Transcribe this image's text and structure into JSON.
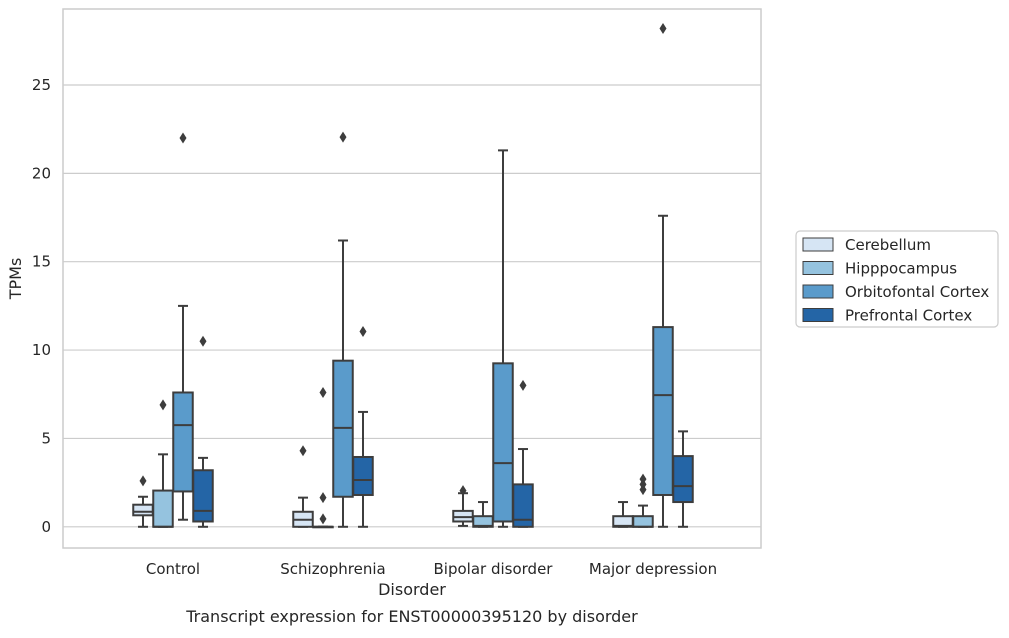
{
  "chart_data": {
    "type": "box",
    "caption": "Transcript expression for ENST00000395120 by disorder",
    "xlabel": "Disorder",
    "ylabel": "TPMs",
    "ylim": [
      -1.2,
      29.3
    ],
    "yticks": [
      0,
      5,
      10,
      15,
      20,
      25
    ],
    "grid": "horizontal",
    "legend_position": "right",
    "categories": [
      "Control",
      "Schizophrenia",
      "Bipolar disorder",
      "Major depression"
    ],
    "series": [
      {
        "name": "Cerebellum",
        "color": "#d6e5f4",
        "boxes": [
          {
            "whislo": 0.0,
            "q1": 0.65,
            "median": 0.85,
            "q3": 1.25,
            "whishi": 1.7,
            "fliers": [
              2.6
            ]
          },
          {
            "whislo": 0.0,
            "q1": 0.0,
            "median": 0.4,
            "q3": 0.85,
            "whishi": 1.65,
            "fliers": [
              4.3
            ]
          },
          {
            "whislo": 0.05,
            "q1": 0.3,
            "median": 0.55,
            "q3": 0.9,
            "whishi": 1.9,
            "fliers": [
              2.05
            ]
          },
          {
            "whislo": 0.0,
            "q1": 0.0,
            "median": 0.05,
            "q3": 0.6,
            "whishi": 1.4,
            "fliers": []
          }
        ]
      },
      {
        "name": "Hipppocampus",
        "color": "#95c3df",
        "boxes": [
          {
            "whislo": 0.0,
            "q1": 0.0,
            "median": 0.0,
            "q3": 2.05,
            "whishi": 4.1,
            "fliers": [
              6.9
            ]
          },
          {
            "whislo": 0.0,
            "q1": 0.0,
            "median": 0.0,
            "q3": 0.0,
            "whishi": 0.0,
            "fliers": [
              0.45,
              1.65,
              7.6
            ]
          },
          {
            "whislo": 0.0,
            "q1": 0.0,
            "median": 0.05,
            "q3": 0.6,
            "whishi": 1.4,
            "fliers": []
          },
          {
            "whislo": 0.0,
            "q1": 0.0,
            "median": 0.0,
            "q3": 0.6,
            "whishi": 1.2,
            "fliers": [
              2.1,
              2.4,
              2.7
            ]
          }
        ]
      },
      {
        "name": "Orbitofontal Cortex",
        "color": "#5a9bcb",
        "boxes": [
          {
            "whislo": 0.4,
            "q1": 2.0,
            "median": 5.75,
            "q3": 7.6,
            "whishi": 12.5,
            "fliers": [
              22.0
            ]
          },
          {
            "whislo": 0.0,
            "q1": 1.7,
            "median": 5.6,
            "q3": 9.4,
            "whishi": 16.2,
            "fliers": [
              22.05
            ]
          },
          {
            "whislo": 0.0,
            "q1": 0.3,
            "median": 3.6,
            "q3": 9.25,
            "whishi": 21.3,
            "fliers": []
          },
          {
            "whislo": 0.0,
            "q1": 1.8,
            "median": 7.45,
            "q3": 11.3,
            "whishi": 17.6,
            "fliers": [
              28.2
            ]
          }
        ]
      },
      {
        "name": "Prefrontal Cortex",
        "color": "#2465a6",
        "boxes": [
          {
            "whislo": 0.0,
            "q1": 0.3,
            "median": 0.9,
            "q3": 3.2,
            "whishi": 3.9,
            "fliers": [
              10.5
            ]
          },
          {
            "whislo": 0.0,
            "q1": 1.8,
            "median": 2.65,
            "q3": 3.95,
            "whishi": 6.5,
            "fliers": [
              11.05
            ]
          },
          {
            "whislo": 0.0,
            "q1": 0.0,
            "median": 0.4,
            "q3": 2.4,
            "whishi": 4.4,
            "fliers": [
              8.0
            ]
          },
          {
            "whislo": 0.0,
            "q1": 1.4,
            "median": 2.3,
            "q3": 4.0,
            "whishi": 5.4,
            "fliers": []
          }
        ]
      }
    ]
  }
}
